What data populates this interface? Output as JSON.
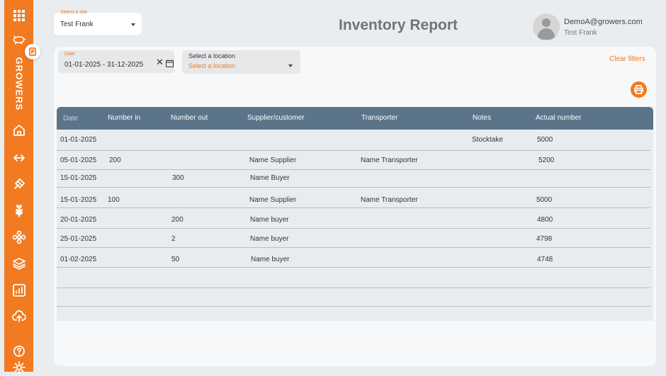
{
  "sidebar": {
    "brand": "GROWERS",
    "items": [
      {
        "icon": "grid-icon"
      },
      {
        "icon": "pig-icon"
      },
      {
        "icon": "home-icon"
      },
      {
        "icon": "transfer-arrows-icon"
      },
      {
        "icon": "feed-scoop-icon"
      },
      {
        "icon": "wheat-icon"
      },
      {
        "icon": "flower-icon"
      },
      {
        "icon": "layers-icon"
      },
      {
        "icon": "chart-icon"
      },
      {
        "icon": "cloud-upload-icon"
      },
      {
        "icon": "help-icon"
      },
      {
        "icon": "settings-icon"
      }
    ],
    "badge_icon": "report-icon"
  },
  "site_select": {
    "label": "Select a site",
    "value": "Test Frank"
  },
  "page_title": "Inventory Report",
  "user": {
    "email": "DemoA@growers.com",
    "name": "Test Frank"
  },
  "filters": {
    "date_label": "Date",
    "date_value": "01-01-2025 - 31-12-2025",
    "location_label": "Select a location",
    "location_placeholder": "Select a location",
    "clear_label": "Clear filters"
  },
  "table": {
    "headers": [
      "Date",
      "Number in",
      "Number out",
      "Supplier/customer",
      "Transporter",
      "Notes",
      "Actual number"
    ],
    "rows": [
      [
        "01-01-2025",
        "",
        "",
        "",
        "",
        "Stocktake",
        "5000"
      ],
      [
        "05-01-2025",
        "200",
        "",
        "Name Supplier",
        "Name Transporter",
        "",
        "5200"
      ],
      [
        "15-01-2025",
        "",
        "300",
        "Name Buyer",
        "",
        "",
        ""
      ],
      [
        "15-01-2025",
        "100",
        "",
        "Name Supplier",
        "Name Transporter",
        "",
        "5000"
      ],
      [
        "20-01-2025",
        "",
        "200",
        "Name buyer",
        "",
        "",
        "4800"
      ],
      [
        "25-01-2025",
        "",
        "2",
        "Name buyer",
        "",
        "",
        "4798"
      ],
      [
        "01-02-2025",
        "",
        "50",
        "Name buyer",
        "",
        "",
        "4748"
      ],
      [
        "",
        "",
        "",
        "",
        "",
        "",
        ""
      ],
      [
        "",
        "",
        "",
        "",
        "",
        "",
        ""
      ]
    ]
  },
  "colors": {
    "accent": "#f27a21",
    "table_header": "#5b7489",
    "background": "#eaedf0"
  }
}
